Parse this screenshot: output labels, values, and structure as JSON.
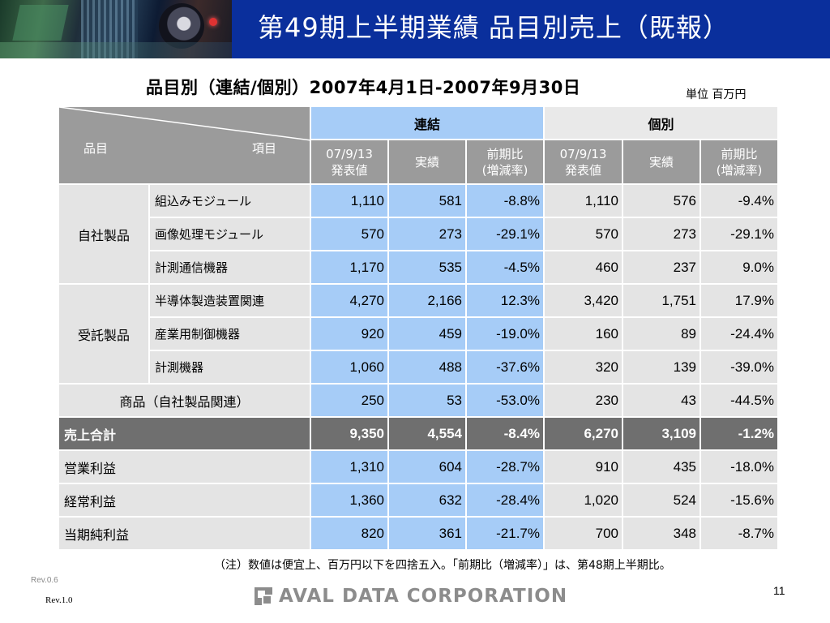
{
  "header": {
    "title": "第49期上半期業績 品目別売上（既報）"
  },
  "subtitle": "品目別（連結/個別）2007年4月1日-2007年9月30日",
  "unit": "単位 百万円",
  "table": {
    "item_header": {
      "left": "品目",
      "right": "項目"
    },
    "group_headers": {
      "consolidated": "連結",
      "individual": "個別"
    },
    "col_headers": [
      {
        "line1": "07/9/13",
        "line2": "発表値"
      },
      {
        "line1": "実績",
        "line2": ""
      },
      {
        "line1": "前期比",
        "line2": "(増減率)"
      },
      {
        "line1": "07/9/13",
        "line2": "発表値"
      },
      {
        "line1": "実績",
        "line2": ""
      },
      {
        "line1": "前期比",
        "line2": "(増減率)"
      }
    ],
    "groups": [
      {
        "label": "自社製品",
        "rows": [
          {
            "label": "組込みモジュール",
            "values": [
              "1,110",
              "581",
              "-8.8%",
              "1,110",
              "576",
              "-9.4%"
            ]
          },
          {
            "label": "画像処理モジュール",
            "values": [
              "570",
              "273",
              "-29.1%",
              "570",
              "273",
              "-29.1%"
            ]
          },
          {
            "label": "計測通信機器",
            "values": [
              "1,170",
              "535",
              "-4.5%",
              "460",
              "237",
              "9.0%"
            ]
          }
        ]
      },
      {
        "label": "受託製品",
        "rows": [
          {
            "label": "半導体製造装置関連",
            "values": [
              "4,270",
              "2,166",
              "12.3%",
              "3,420",
              "1,751",
              "17.9%"
            ]
          },
          {
            "label": "産業用制御機器",
            "values": [
              "920",
              "459",
              "-19.0%",
              "160",
              "89",
              "-24.4%"
            ]
          },
          {
            "label": "計測機器",
            "values": [
              "1,060",
              "488",
              "-37.6%",
              "320",
              "139",
              "-39.0%"
            ]
          }
        ]
      }
    ],
    "merchandise": {
      "label": "商品（自社製品関連）",
      "values": [
        "250",
        "53",
        "-53.0%",
        "230",
        "43",
        "-44.5%"
      ]
    },
    "total": {
      "label": "売上合計",
      "values": [
        "9,350",
        "4,554",
        "-8.4%",
        "6,270",
        "3,109",
        "-1.2%"
      ]
    },
    "profits": [
      {
        "label": "営業利益",
        "values": [
          "1,310",
          "604",
          "-28.7%",
          "910",
          "435",
          "-18.0%"
        ]
      },
      {
        "label": "経常利益",
        "values": [
          "1,360",
          "632",
          "-28.4%",
          "1,020",
          "524",
          "-15.6%"
        ]
      },
      {
        "label": "当期純利益",
        "values": [
          "820",
          "361",
          "-21.7%",
          "700",
          "348",
          "-8.7%"
        ]
      }
    ]
  },
  "note": "（注）数値は便宜上、百万円以下を四捨五入。「前期比（増減率）」は、第48期上半期比。",
  "footer": {
    "rev_a": "Rev.0.6",
    "rev_b": "Rev.1.0",
    "logo_text": "AVAL DATA CORPORATION",
    "page_number": "11"
  },
  "colors": {
    "header_bg": "#0a2f9c",
    "consolidated_bg": "#a6ccf7",
    "cell_gray": "#e4e4e4",
    "header_gray": "#9b9b9b",
    "total_bg": "#6f6f6f"
  }
}
